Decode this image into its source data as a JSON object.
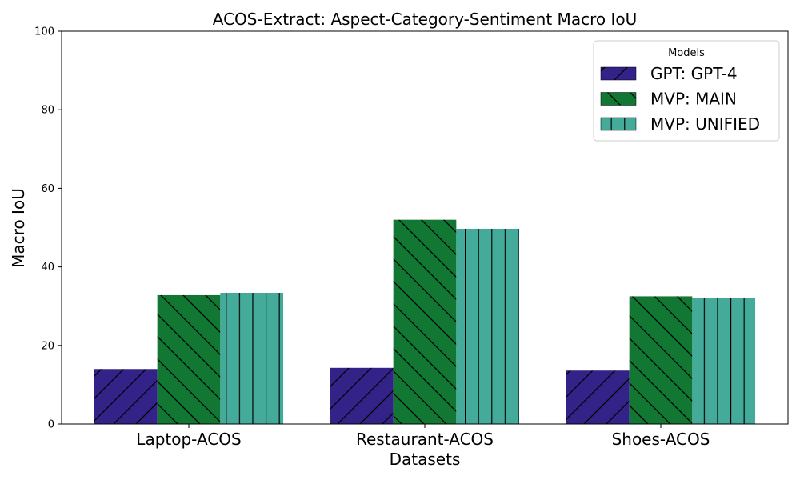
{
  "chart_data": {
    "type": "bar",
    "title": "ACOS-Extract: Aspect-Category-Sentiment Macro IoU",
    "xlabel": "Datasets",
    "ylabel": "Macro IoU",
    "ylim": [
      0,
      100
    ],
    "yticks": [
      "0",
      "20",
      "40",
      "60",
      "80",
      "100"
    ],
    "categories": [
      "Laptop-ACOS",
      "Restaurant-ACOS",
      "Shoes-ACOS"
    ],
    "series": [
      {
        "name": "GPT: GPT-4",
        "values": [
          14.0,
          14.3,
          13.6
        ],
        "color": "#332288",
        "hatch": "/"
      },
      {
        "name": "MVP: MAIN",
        "values": [
          32.8,
          52.0,
          32.5
        ],
        "color": "#117733",
        "hatch": "\\"
      },
      {
        "name": "MVP: UNIFIED",
        "values": [
          33.4,
          49.7,
          32.1
        ],
        "color": "#44AA99",
        "hatch": "|"
      }
    ],
    "legend": {
      "title": "Models",
      "position": "top-right"
    },
    "grid": false
  }
}
